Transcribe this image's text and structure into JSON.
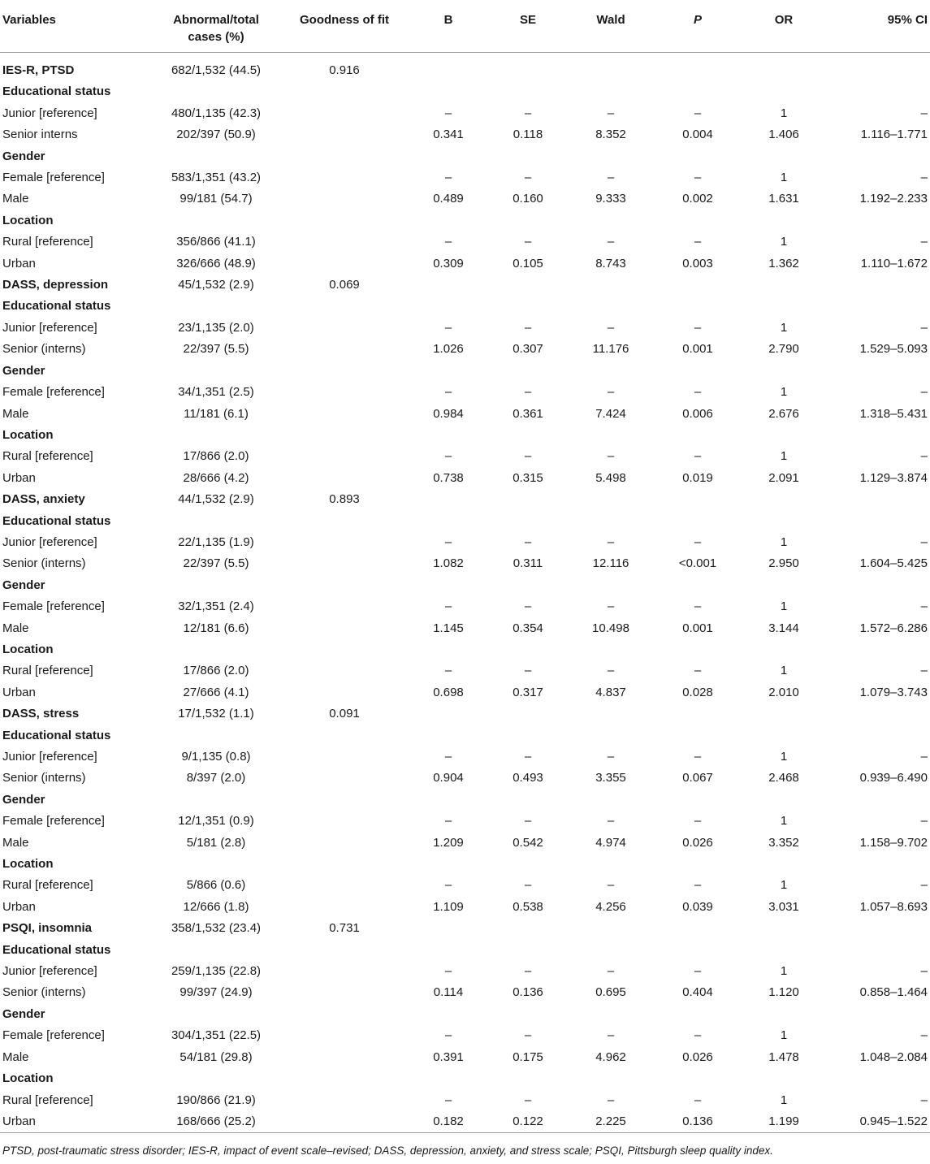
{
  "headers": {
    "variables": "Variables",
    "abnormal": "Abnormal/total cases (%)",
    "goodness": "Goodness of fit",
    "b": "B",
    "se": "SE",
    "wald": "Wald",
    "p": "P",
    "or": "OR",
    "ci": "95% CI"
  },
  "rows": [
    {
      "kind": "header",
      "label": "IES-R, PTSD",
      "cases": "682/1,532 (44.5)",
      "gof": "0.916"
    },
    {
      "kind": "section",
      "label": "Educational status"
    },
    {
      "kind": "data",
      "label": "Junior [reference]",
      "cases": "480/1,135 (42.3)",
      "b": "–",
      "se": "–",
      "wald": "–",
      "p": "–",
      "or": "1",
      "ci": "–"
    },
    {
      "kind": "data",
      "label": "Senior interns",
      "cases": "202/397 (50.9)",
      "b": "0.341",
      "se": "0.118",
      "wald": "8.352",
      "p": "0.004",
      "or": "1.406",
      "ci": "1.116–1.771"
    },
    {
      "kind": "section",
      "label": "Gender"
    },
    {
      "kind": "data",
      "label": "Female [reference]",
      "cases": "583/1,351 (43.2)",
      "b": "–",
      "se": "–",
      "wald": "–",
      "p": "–",
      "or": "1",
      "ci": "–"
    },
    {
      "kind": "data",
      "label": "Male",
      "cases": "99/181 (54.7)",
      "b": "0.489",
      "se": "0.160",
      "wald": "9.333",
      "p": "0.002",
      "or": "1.631",
      "ci": "1.192–2.233"
    },
    {
      "kind": "section",
      "label": "Location"
    },
    {
      "kind": "data",
      "label": "Rural [reference]",
      "cases": "356/866 (41.1)",
      "b": "–",
      "se": "–",
      "wald": "–",
      "p": "–",
      "or": "1",
      "ci": "–"
    },
    {
      "kind": "data",
      "label": "Urban",
      "cases": "326/666 (48.9)",
      "b": "0.309",
      "se": "0.105",
      "wald": "8.743",
      "p": "0.003",
      "or": "1.362",
      "ci": "1.110–1.672"
    },
    {
      "kind": "header",
      "label": "DASS, depression",
      "cases": "45/1,532 (2.9)",
      "gof": "0.069"
    },
    {
      "kind": "section",
      "label": "Educational status"
    },
    {
      "kind": "data",
      "label": "Junior [reference]",
      "cases": "23/1,135 (2.0)",
      "b": "–",
      "se": "–",
      "wald": "–",
      "p": "–",
      "or": "1",
      "ci": "–"
    },
    {
      "kind": "data",
      "label": "Senior (interns)",
      "cases": "22/397 (5.5)",
      "b": "1.026",
      "se": "0.307",
      "wald": "11.176",
      "p": "0.001",
      "or": "2.790",
      "ci": "1.529–5.093"
    },
    {
      "kind": "section",
      "label": "Gender"
    },
    {
      "kind": "data",
      "label": "Female [reference]",
      "cases": "34/1,351 (2.5)",
      "b": "–",
      "se": "–",
      "wald": "–",
      "p": "–",
      "or": "1",
      "ci": "–"
    },
    {
      "kind": "data",
      "label": "Male",
      "cases": "11/181 (6.1)",
      "b": "0.984",
      "se": "0.361",
      "wald": "7.424",
      "p": "0.006",
      "or": "2.676",
      "ci": "1.318–5.431"
    },
    {
      "kind": "section",
      "label": "Location"
    },
    {
      "kind": "data",
      "label": "Rural [reference]",
      "cases": "17/866 (2.0)",
      "b": "–",
      "se": "–",
      "wald": "–",
      "p": "–",
      "or": "1",
      "ci": "–"
    },
    {
      "kind": "data",
      "label": "Urban",
      "cases": "28/666 (4.2)",
      "b": "0.738",
      "se": "0.315",
      "wald": "5.498",
      "p": "0.019",
      "or": "2.091",
      "ci": "1.129–3.874"
    },
    {
      "kind": "header",
      "label": "DASS, anxiety",
      "cases": "44/1,532 (2.9)",
      "gof": "0.893"
    },
    {
      "kind": "section",
      "label": "Educational status"
    },
    {
      "kind": "data",
      "label": "Junior [reference]",
      "cases": "22/1,135 (1.9)",
      "b": "–",
      "se": "–",
      "wald": "–",
      "p": "–",
      "or": "1",
      "ci": "–"
    },
    {
      "kind": "data",
      "label": "Senior (interns)",
      "cases": "22/397 (5.5)",
      "b": "1.082",
      "se": "0.311",
      "wald": "12.116",
      "p": "<0.001",
      "or": "2.950",
      "ci": "1.604–5.425"
    },
    {
      "kind": "section",
      "label": "Gender"
    },
    {
      "kind": "data",
      "label": "Female [reference]",
      "cases": "32/1,351 (2.4)",
      "b": "–",
      "se": "–",
      "wald": "–",
      "p": "–",
      "or": "1",
      "ci": "–"
    },
    {
      "kind": "data",
      "label": "Male",
      "cases": "12/181 (6.6)",
      "b": "1.145",
      "se": "0.354",
      "wald": "10.498",
      "p": "0.001",
      "or": "3.144",
      "ci": "1.572–6.286"
    },
    {
      "kind": "section",
      "label": "Location"
    },
    {
      "kind": "data",
      "label": "Rural [reference]",
      "cases": "17/866 (2.0)",
      "b": "–",
      "se": "–",
      "wald": "–",
      "p": "–",
      "or": "1",
      "ci": "–"
    },
    {
      "kind": "data",
      "label": "Urban",
      "cases": "27/666 (4.1)",
      "b": "0.698",
      "se": "0.317",
      "wald": "4.837",
      "p": "0.028",
      "or": "2.010",
      "ci": "1.079–3.743"
    },
    {
      "kind": "header",
      "label": "DASS, stress",
      "cases": "17/1,532 (1.1)",
      "gof": "0.091"
    },
    {
      "kind": "section",
      "label": "Educational status"
    },
    {
      "kind": "data",
      "label": "Junior [reference]",
      "cases": "9/1,135 (0.8)",
      "b": "–",
      "se": "–",
      "wald": "–",
      "p": "–",
      "or": "1",
      "ci": "–"
    },
    {
      "kind": "data",
      "label": "Senior (interns)",
      "cases": "8/397 (2.0)",
      "b": "0.904",
      "se": "0.493",
      "wald": "3.355",
      "p": "0.067",
      "or": "2.468",
      "ci": "0.939–6.490"
    },
    {
      "kind": "section",
      "label": "Gender"
    },
    {
      "kind": "data",
      "label": "Female [reference]",
      "cases": "12/1,351 (0.9)",
      "b": "–",
      "se": "–",
      "wald": "–",
      "p": "–",
      "or": "1",
      "ci": "–"
    },
    {
      "kind": "data",
      "label": "Male",
      "cases": "5/181 (2.8)",
      "b": "1.209",
      "se": "0.542",
      "wald": "4.974",
      "p": "0.026",
      "or": "3.352",
      "ci": "1.158–9.702"
    },
    {
      "kind": "section",
      "label": "Location"
    },
    {
      "kind": "data",
      "label": "Rural [reference]",
      "cases": "5/866 (0.6)",
      "b": "–",
      "se": "–",
      "wald": "–",
      "p": "–",
      "or": "1",
      "ci": "–"
    },
    {
      "kind": "data",
      "label": "Urban",
      "cases": "12/666 (1.8)",
      "b": "1.109",
      "se": "0.538",
      "wald": "4.256",
      "p": "0.039",
      "or": "3.031",
      "ci": "1.057–8.693"
    },
    {
      "kind": "header",
      "label": "PSQI, insomnia",
      "cases": "358/1,532 (23.4)",
      "gof": "0.731"
    },
    {
      "kind": "section",
      "label": "Educational status"
    },
    {
      "kind": "data",
      "label": "Junior [reference]",
      "cases": "259/1,135 (22.8)",
      "b": "–",
      "se": "–",
      "wald": "–",
      "p": "–",
      "or": "1",
      "ci": "–"
    },
    {
      "kind": "data",
      "label": "Senior (interns)",
      "cases": "99/397 (24.9)",
      "b": "0.114",
      "se": "0.136",
      "wald": "0.695",
      "p": "0.404",
      "or": "1.120",
      "ci": "0.858–1.464"
    },
    {
      "kind": "section",
      "label": "Gender"
    },
    {
      "kind": "data",
      "label": "Female [reference]",
      "cases": "304/1,351 (22.5)",
      "b": "–",
      "se": "–",
      "wald": "–",
      "p": "–",
      "or": "1",
      "ci": "–"
    },
    {
      "kind": "data",
      "label": "Male",
      "cases": "54/181 (29.8)",
      "b": "0.391",
      "se": "0.175",
      "wald": "4.962",
      "p": "0.026",
      "or": "1.478",
      "ci": "1.048–2.084"
    },
    {
      "kind": "section",
      "label": "Location"
    },
    {
      "kind": "data",
      "label": "Rural [reference]",
      "cases": "190/866 (21.9)",
      "b": "–",
      "se": "–",
      "wald": "–",
      "p": "–",
      "or": "1",
      "ci": "–"
    },
    {
      "kind": "data",
      "label": "Urban",
      "cases": "168/666 (25.2)",
      "b": "0.182",
      "se": "0.122",
      "wald": "2.225",
      "p": "0.136",
      "or": "1.199",
      "ci": "0.945–1.522"
    }
  ],
  "footnote": "PTSD, post-traumatic stress disorder; IES-R, impact of event scale–revised; DASS, depression, anxiety, and stress scale; PSQI, Pittsburgh sleep quality index."
}
